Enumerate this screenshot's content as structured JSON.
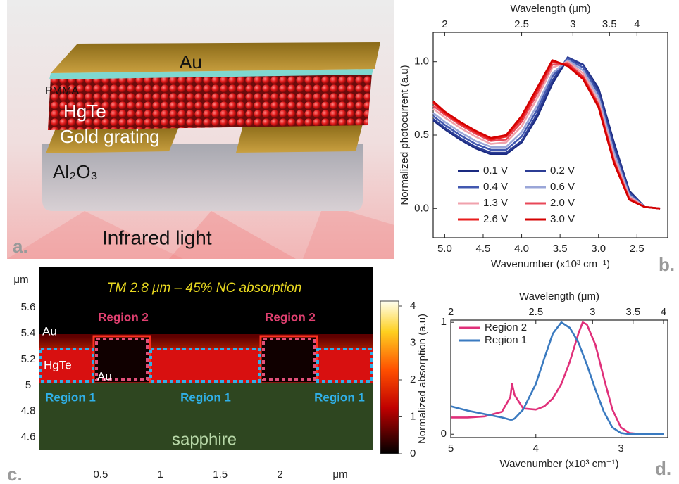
{
  "illustration": {
    "labels": {
      "au": "Au",
      "pmma": "PMMA",
      "hgte": "HgTe",
      "grating": "Gold grating",
      "substrate": "Al₂O₃",
      "light": "Infrared light"
    },
    "panel_label": "a."
  },
  "chart_data": [
    {
      "type": "line",
      "panel_label": "b.",
      "xlabel": "Wavenumber (x10³ cm⁻¹)",
      "ylabel": "Normalized photocurrent (a.u)",
      "x2label": "Wavelength (μm)",
      "x2_scale": "reciprocal",
      "xlim": [
        5.15,
        2.1
      ],
      "ylim": [
        -0.2,
        1.2
      ],
      "xticks": [
        {
          "value": 5,
          "label": "5.0"
        },
        4.5,
        {
          "value": 4,
          "label": "4.0"
        },
        3.5,
        {
          "value": 3,
          "label": "3.0"
        },
        2.5
      ],
      "yticks": [
        {
          "value": 0,
          "label": "0.0"
        },
        0.5,
        {
          "value": 1,
          "label": "1.0"
        }
      ],
      "x2ticks": [
        2,
        2.5,
        3,
        3.5,
        4
      ],
      "legend": "lower-left",
      "legend_columns": 2,
      "x": [
        5.15,
        5.0,
        4.8,
        4.6,
        4.4,
        4.2,
        4.0,
        3.8,
        3.6,
        3.4,
        3.2,
        3.0,
        2.8,
        2.6,
        2.4,
        2.2
      ],
      "series": [
        {
          "name": "0.1 V",
          "color": "#1a2a80",
          "values": [
            0.6,
            0.54,
            0.47,
            0.41,
            0.37,
            0.37,
            0.45,
            0.62,
            0.85,
            1.02,
            0.98,
            0.82,
            0.45,
            0.12,
            0.01,
            0.0
          ]
        },
        {
          "name": "0.2 V",
          "color": "#2c3d95",
          "values": [
            0.61,
            0.55,
            0.48,
            0.42,
            0.38,
            0.38,
            0.46,
            0.64,
            0.87,
            1.03,
            0.98,
            0.8,
            0.43,
            0.11,
            0.01,
            0.0
          ]
        },
        {
          "name": "0.4 V",
          "color": "#4258b0",
          "values": [
            0.63,
            0.57,
            0.5,
            0.44,
            0.4,
            0.4,
            0.49,
            0.67,
            0.9,
            1.02,
            0.96,
            0.78,
            0.4,
            0.1,
            0.01,
            0.0
          ]
        },
        {
          "name": "0.6 V",
          "color": "#9aa6d8",
          "values": [
            0.65,
            0.59,
            0.52,
            0.46,
            0.42,
            0.42,
            0.52,
            0.7,
            0.92,
            1.01,
            0.94,
            0.76,
            0.38,
            0.09,
            0.01,
            0.0
          ]
        },
        {
          "name": "1.3 V",
          "color": "#f0a2ac",
          "values": [
            0.68,
            0.62,
            0.55,
            0.49,
            0.44,
            0.45,
            0.56,
            0.75,
            0.96,
            1.0,
            0.92,
            0.73,
            0.35,
            0.08,
            0.01,
            0.0
          ]
        },
        {
          "name": "2.0 V",
          "color": "#e84858",
          "values": [
            0.7,
            0.64,
            0.57,
            0.51,
            0.46,
            0.47,
            0.59,
            0.78,
            0.98,
            0.99,
            0.9,
            0.71,
            0.33,
            0.07,
            0.01,
            0.0
          ]
        },
        {
          "name": "2.6 V",
          "color": "#e81c1c",
          "values": [
            0.72,
            0.65,
            0.58,
            0.52,
            0.47,
            0.49,
            0.61,
            0.8,
            1.0,
            0.98,
            0.89,
            0.7,
            0.32,
            0.06,
            0.01,
            0.0
          ]
        },
        {
          "name": "3.0 V",
          "color": "#d40000",
          "values": [
            0.73,
            0.66,
            0.59,
            0.53,
            0.48,
            0.5,
            0.63,
            0.82,
            1.01,
            0.97,
            0.88,
            0.69,
            0.31,
            0.06,
            0.01,
            0.0
          ]
        }
      ]
    },
    {
      "type": "line",
      "panel_label": "d.",
      "xlabel": "Wavenumber (x10³ cm⁻¹)",
      "ylabel": "Normalized absorption (a.u)",
      "x2label": "Wavelength (μm)",
      "x2_scale": "reciprocal",
      "xlim": [
        5,
        2.45
      ],
      "ylim": [
        -0.03,
        1.02
      ],
      "xticks": [
        5,
        4,
        3
      ],
      "yticks": [
        0,
        1
      ],
      "x2ticks": [
        2,
        2.5,
        3,
        3.5,
        4
      ],
      "legend": "upper-left",
      "legend_columns": 1,
      "x": [
        5.0,
        4.8,
        4.6,
        4.4,
        4.3,
        4.28,
        4.25,
        4.15,
        4.0,
        3.9,
        3.8,
        3.7,
        3.6,
        3.5,
        3.45,
        3.4,
        3.3,
        3.2,
        3.1,
        3.0,
        2.9,
        2.75,
        2.5
      ],
      "series": [
        {
          "name": "Region 2",
          "color": "#e0307a",
          "values": [
            0.15,
            0.15,
            0.16,
            0.2,
            0.33,
            0.45,
            0.35,
            0.23,
            0.22,
            0.25,
            0.32,
            0.45,
            0.65,
            0.9,
            1.0,
            0.98,
            0.8,
            0.5,
            0.22,
            0.06,
            0.01,
            0,
            0
          ]
        },
        {
          "name": "Region 1",
          "color": "#3a7ac0",
          "values": [
            0.25,
            0.21,
            0.18,
            0.15,
            0.13,
            0.13,
            0.14,
            0.22,
            0.45,
            0.68,
            0.9,
            1.0,
            0.95,
            0.82,
            0.72,
            0.62,
            0.4,
            0.2,
            0.06,
            0.01,
            0,
            0,
            0
          ]
        }
      ]
    }
  ],
  "field_map": {
    "panel_label": "c.",
    "title": "TM 2.8 μm – 45% NC absorption",
    "y_unit": "μm",
    "x_unit": "μm",
    "xlim": [
      0,
      2.78
    ],
    "ylim": [
      4.5,
      5.91
    ],
    "xticks": [
      0.5,
      1,
      1.5,
      2
    ],
    "yticks": [
      4.6,
      4.8,
      5,
      5.2,
      5.4,
      5.6
    ],
    "colorbar_lim": [
      0,
      4
    ],
    "colorbar_ticks": [
      0,
      1,
      2,
      3,
      4
    ],
    "labels": {
      "region2_left": "Region 2",
      "region2_right": "Region 2",
      "au_top": "Au",
      "au_bottom": "Au",
      "hgte": "HgTe",
      "region1_left": "Region 1",
      "region1_mid": "Region 1",
      "region1_right": "Region 1",
      "substrate": "sapphire"
    }
  }
}
